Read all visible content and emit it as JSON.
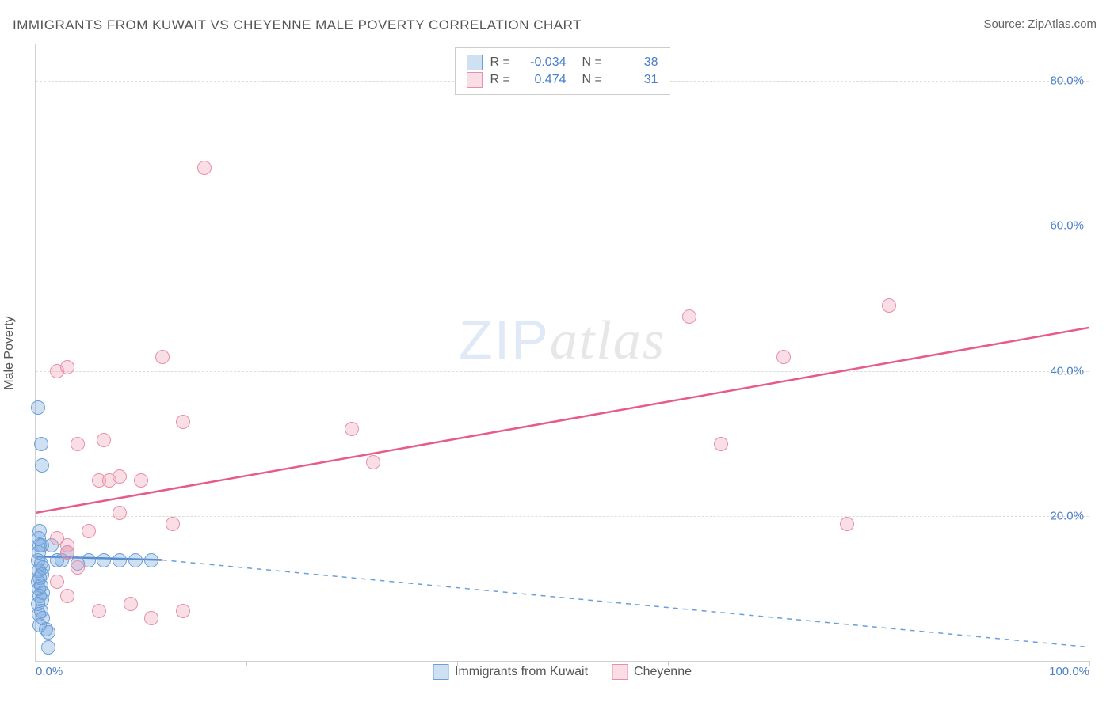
{
  "title": "IMMIGRANTS FROM KUWAIT VS CHEYENNE MALE POVERTY CORRELATION CHART",
  "source": "Source: ZipAtlas.com",
  "y_axis_label": "Male Poverty",
  "watermark_a": "ZIP",
  "watermark_b": "atlas",
  "chart": {
    "type": "scatter",
    "xlim": [
      0,
      100
    ],
    "ylim": [
      0,
      85
    ],
    "x_ticks": [
      0,
      20,
      40,
      60,
      80,
      100
    ],
    "x_tick_labels": [
      "0.0%",
      null,
      null,
      null,
      null,
      "100.0%"
    ],
    "y_ticks": [
      20,
      40,
      60,
      80
    ],
    "y_tick_labels": [
      "20.0%",
      "40.0%",
      "60.0%",
      "80.0%"
    ],
    "grid_color": "#dddddd",
    "background_color": "#ffffff",
    "marker_radius": 9,
    "marker_border_width": 1.5,
    "series": [
      {
        "name": "Immigrants from Kuwait",
        "color_fill": "rgba(120,165,220,0.35)",
        "color_stroke": "#6a9fd8",
        "r_value": "-0.034",
        "n_value": "38",
        "trend": {
          "x1": 0,
          "y1": 14.5,
          "x2": 12,
          "y2": 14.0,
          "width": 2.5,
          "color": "#4a7fc9"
        },
        "dashed_trend": {
          "x1": 12,
          "y1": 14.0,
          "x2": 100,
          "y2": 2.0,
          "color": "#6a9fd8"
        },
        "points": [
          [
            0.2,
            35
          ],
          [
            0.5,
            30
          ],
          [
            0.6,
            27
          ],
          [
            0.4,
            18
          ],
          [
            0.3,
            17
          ],
          [
            0.4,
            16
          ],
          [
            0.6,
            16
          ],
          [
            0.3,
            15
          ],
          [
            0.2,
            14
          ],
          [
            0.5,
            13.5
          ],
          [
            0.7,
            13
          ],
          [
            0.3,
            12.5
          ],
          [
            0.6,
            12
          ],
          [
            0.4,
            11.5
          ],
          [
            0.2,
            11
          ],
          [
            0.5,
            10.5
          ],
          [
            0.3,
            10
          ],
          [
            0.7,
            9.5
          ],
          [
            0.4,
            9
          ],
          [
            0.6,
            8.5
          ],
          [
            0.2,
            8
          ],
          [
            0.5,
            7
          ],
          [
            0.3,
            6.5
          ],
          [
            0.7,
            6
          ],
          [
            0.4,
            5
          ],
          [
            1.0,
            4.5
          ],
          [
            1.2,
            4
          ],
          [
            1.5,
            16
          ],
          [
            2.0,
            14
          ],
          [
            2.5,
            14
          ],
          [
            3.0,
            15
          ],
          [
            4.0,
            13.5
          ],
          [
            5.0,
            14
          ],
          [
            6.5,
            14
          ],
          [
            8.0,
            14
          ],
          [
            9.5,
            14
          ],
          [
            11.0,
            14
          ],
          [
            1.2,
            2
          ]
        ]
      },
      {
        "name": "Cheyenne",
        "color_fill": "rgba(240,160,180,0.35)",
        "color_stroke": "#e78fa8",
        "r_value": "0.474",
        "n_value": "31",
        "trend": {
          "x1": 0,
          "y1": 20.5,
          "x2": 100,
          "y2": 46,
          "width": 2.5,
          "color": "#e75b8a"
        },
        "dashed_trend": null,
        "points": [
          [
            2,
            40
          ],
          [
            3,
            40.5
          ],
          [
            4,
            30
          ],
          [
            6,
            25
          ],
          [
            6.5,
            30.5
          ],
          [
            7,
            25
          ],
          [
            8,
            25.5
          ],
          [
            10,
            25
          ],
          [
            12,
            42
          ],
          [
            14,
            33
          ],
          [
            16,
            68
          ],
          [
            2,
            17
          ],
          [
            3,
            16
          ],
          [
            5,
            18
          ],
          [
            8,
            20.5
          ],
          [
            13,
            19
          ],
          [
            2,
            11
          ],
          [
            3,
            9
          ],
          [
            4,
            13
          ],
          [
            6,
            7
          ],
          [
            9,
            8
          ],
          [
            11,
            6
          ],
          [
            14,
            7
          ],
          [
            30,
            32
          ],
          [
            32,
            27.5
          ],
          [
            62,
            47.5
          ],
          [
            65,
            30
          ],
          [
            71,
            42
          ],
          [
            77,
            19
          ],
          [
            81,
            49
          ],
          [
            3,
            15
          ]
        ]
      }
    ]
  },
  "legend_top": {
    "r_label": "R =",
    "n_label": "N ="
  },
  "legend_bottom": {
    "items": [
      "Immigrants from Kuwait",
      "Cheyenne"
    ]
  }
}
